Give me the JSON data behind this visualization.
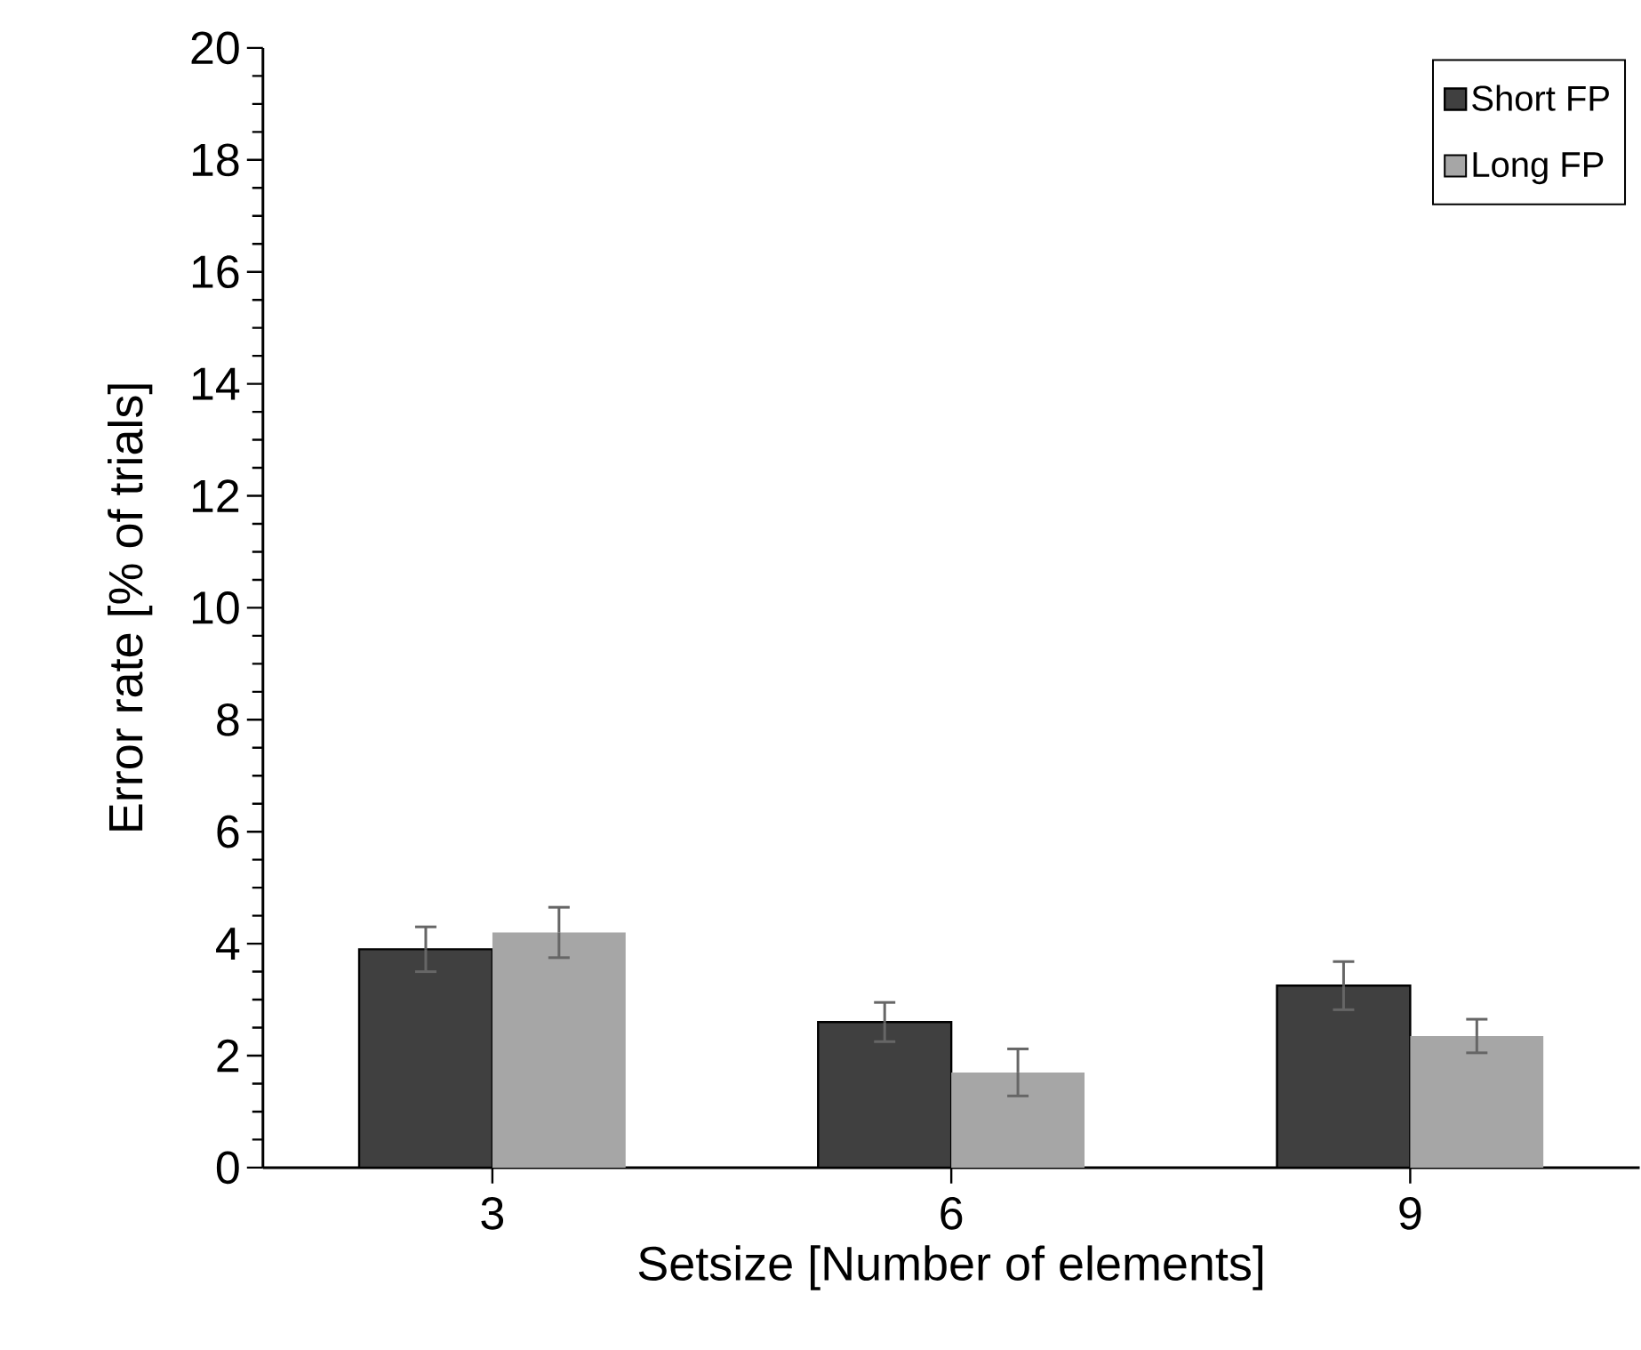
{
  "chart_data": {
    "type": "bar",
    "xlabel": "Setsize [Number of elements]",
    "ylabel": "Error rate [% of  trials]",
    "categories": [
      "3",
      "6",
      "9"
    ],
    "series": [
      {
        "name": "Short FP",
        "color": "#404040",
        "values": [
          3.9,
          2.6,
          3.25
        ],
        "errors": [
          0.4,
          0.35,
          0.43
        ]
      },
      {
        "name": "Long FP",
        "color": "#a6a6a6",
        "values": [
          4.2,
          1.7,
          2.35
        ],
        "errors": [
          0.45,
          0.42,
          0.3
        ]
      }
    ],
    "ylim": [
      0,
      20
    ],
    "yticks": [
      0,
      {
        "value": 0.5,
        "label": null
      },
      {
        "value": 1,
        "label": null
      },
      {
        "value": 1.5,
        "label": null
      },
      2,
      {
        "value": 2.5,
        "label": null
      },
      {
        "value": 3,
        "label": null
      },
      {
        "value": 3.5,
        "label": null
      },
      4,
      {
        "value": 4.5,
        "label": null
      },
      {
        "value": 5,
        "label": null
      },
      {
        "value": 5.5,
        "label": null
      },
      6,
      {
        "value": 6.5,
        "label": null
      },
      {
        "value": 7,
        "label": null
      },
      {
        "value": 7.5,
        "label": null
      },
      8,
      {
        "value": 8.5,
        "label": null
      },
      {
        "value": 9,
        "label": null
      },
      {
        "value": 9.5,
        "label": null
      },
      10,
      {
        "value": 10.5,
        "label": null
      },
      {
        "value": 11,
        "label": null
      },
      {
        "value": 11.5,
        "label": null
      },
      12,
      {
        "value": 12.5,
        "label": null
      },
      {
        "value": 13,
        "label": null
      },
      {
        "value": 13.5,
        "label": null
      },
      14,
      {
        "value": 14.5,
        "label": null
      },
      {
        "value": 15,
        "label": null
      },
      {
        "value": 15.5,
        "label": null
      },
      16,
      {
        "value": 16.5,
        "label": null
      },
      {
        "value": 17,
        "label": null
      },
      {
        "value": 17.5,
        "label": null
      },
      18,
      {
        "value": 18.5,
        "label": null
      },
      {
        "value": 19,
        "label": null
      },
      {
        "value": 19.5,
        "label": null
      },
      20
    ],
    "grid": false,
    "legend": "top right"
  }
}
